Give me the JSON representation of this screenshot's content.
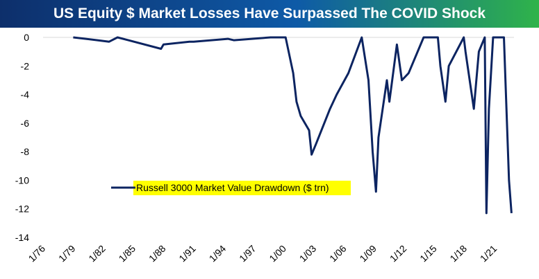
{
  "colors": {
    "banner_start": "#0d2f6b",
    "banner_mid": "#0e5aa7",
    "banner_end": "#2fb34a",
    "series": "#0c2461",
    "legend_highlight": "#ffff00",
    "grid": "#d9d9d9"
  },
  "chart_data": {
    "type": "line",
    "title": "US Equity $ Market Losses Have Surpassed The COVID Shock",
    "xlabel": "",
    "ylabel": "",
    "ylim": [
      -14,
      0
    ],
    "yticks": [
      0,
      -2,
      -4,
      -6,
      -8,
      -10,
      -12,
      -14
    ],
    "xticks": [
      "1/76",
      "1/79",
      "1/82",
      "1/85",
      "1/88",
      "1/91",
      "1/94",
      "1/97",
      "1/00",
      "1/03",
      "1/06",
      "1/09",
      "1/12",
      "1/15",
      "1/18",
      "1/21"
    ],
    "xrange": [
      "1976-01",
      "2022-12"
    ],
    "grid": "horizontal-top-only",
    "legend_position": "center-left",
    "series": [
      {
        "name": "Russell 3000 Market Value Drawdown ($ trn)",
        "x": [
          "1979-01",
          "1981-06",
          "1982-08",
          "1983-06",
          "1984-07",
          "1987-10",
          "1988-01",
          "1990-08",
          "1991-01",
          "1994-06",
          "1995-01",
          "1998-09",
          "2000-03",
          "2000-12",
          "2001-04",
          "2001-09",
          "2002-07",
          "2002-10",
          "2003-03",
          "2004-08",
          "2005-04",
          "2006-06",
          "2007-10",
          "2008-06",
          "2008-11",
          "2009-03",
          "2009-06",
          "2010-04",
          "2010-07",
          "2011-04",
          "2011-10",
          "2012-06",
          "2013-12",
          "2014-10",
          "2015-05",
          "2015-08",
          "2016-02",
          "2016-06",
          "2017-12",
          "2018-02",
          "2018-12",
          "2019-06",
          "2020-01",
          "2020-03",
          "2020-06",
          "2020-11",
          "2021-06",
          "2021-12",
          "2022-06",
          "2022-09"
        ],
        "values": [
          0,
          -0.2,
          -0.3,
          0,
          -0.2,
          -0.8,
          -0.5,
          -0.3,
          -0.3,
          -0.1,
          -0.2,
          0,
          0,
          -2.5,
          -4.5,
          -5.5,
          -6.5,
          -8.2,
          -7.5,
          -5.0,
          -4.0,
          -2.5,
          0,
          -3.0,
          -8.0,
          -10.8,
          -7.0,
          -3.0,
          -4.5,
          -0.5,
          -3.0,
          -2.5,
          0,
          0,
          0,
          -2.0,
          -4.5,
          -2.0,
          0,
          -1.0,
          -5.0,
          -1.0,
          0,
          -12.3,
          -5.0,
          0,
          0,
          0,
          -10.0,
          -12.3
        ]
      }
    ]
  }
}
